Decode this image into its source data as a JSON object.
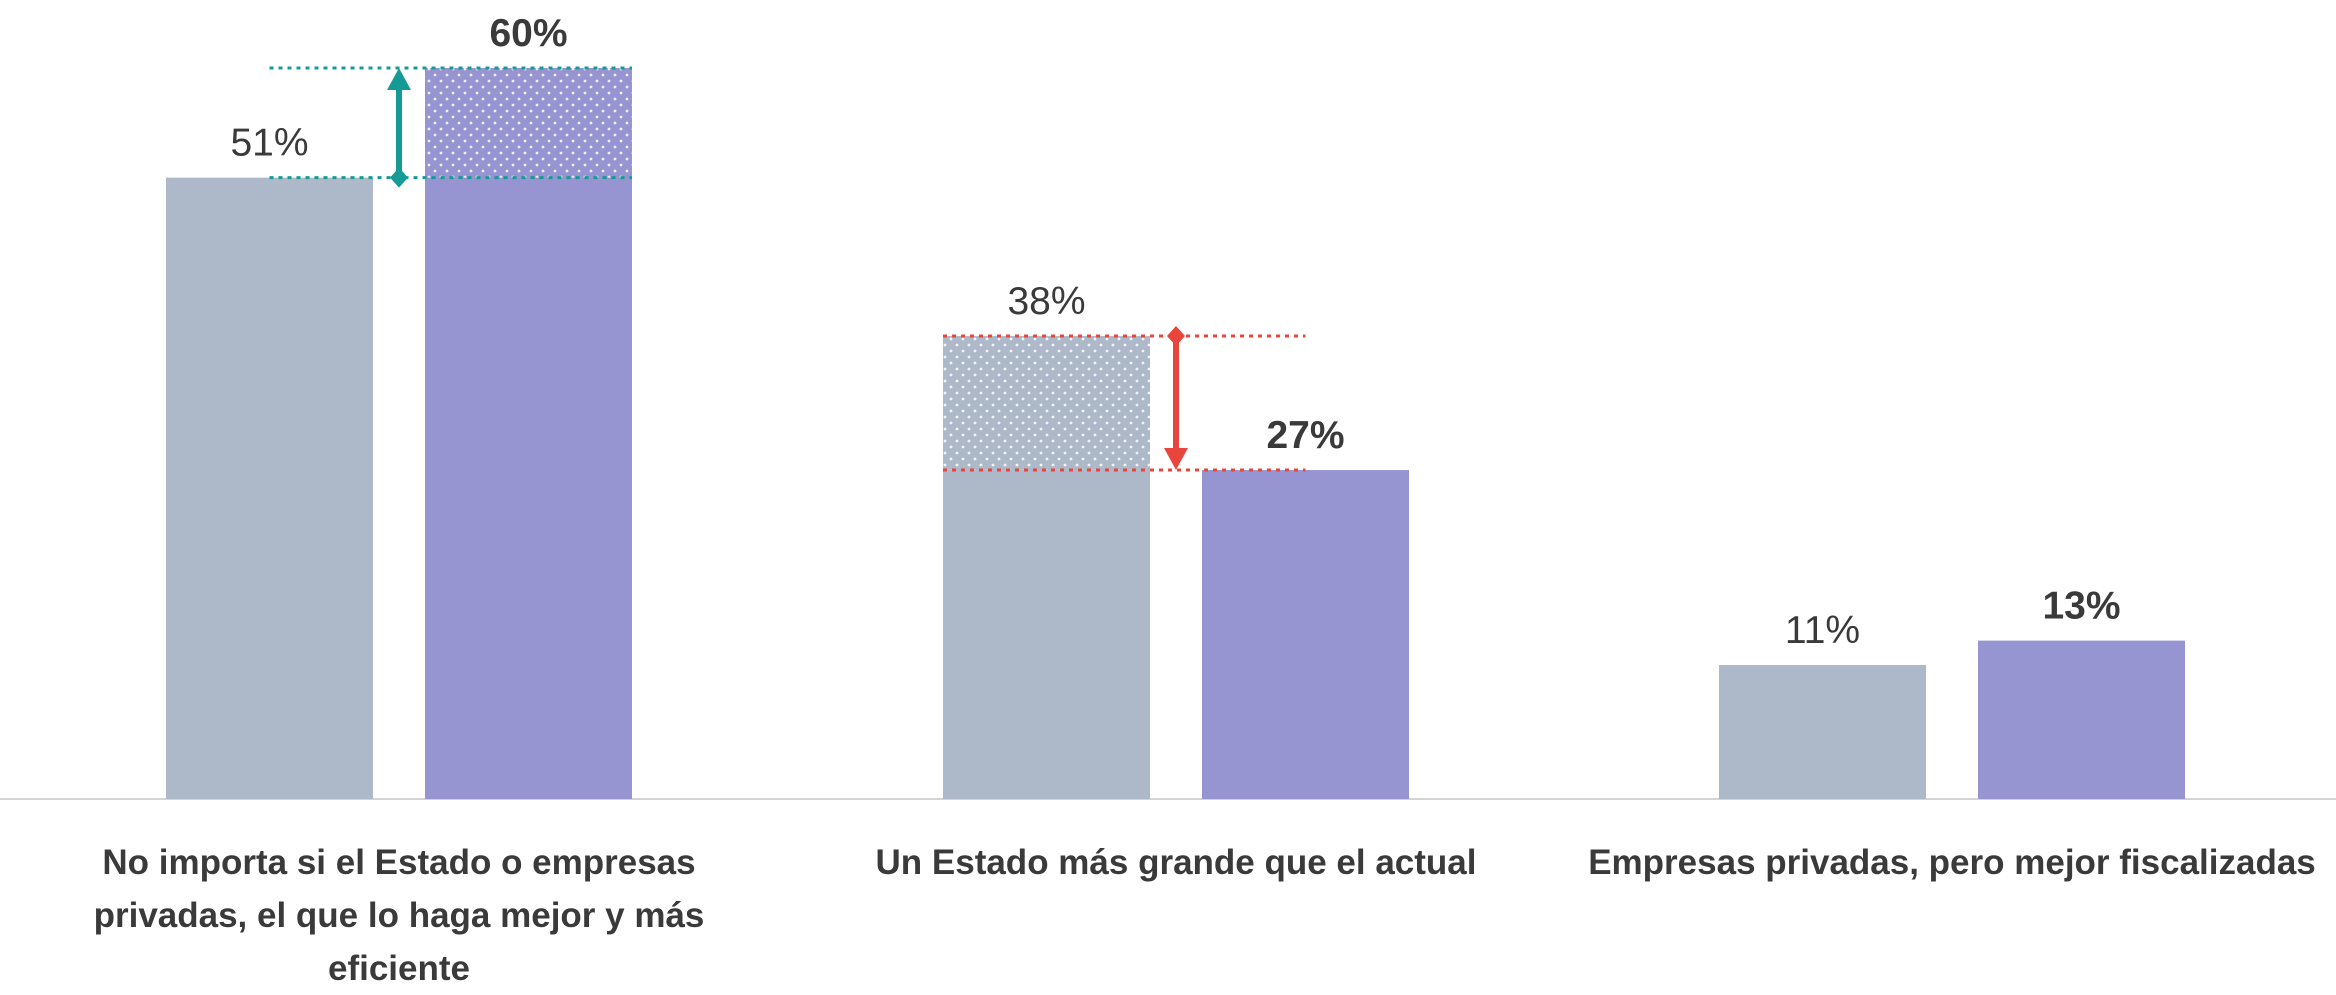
{
  "chart_data": {
    "type": "bar",
    "categories": [
      "No importa si el Estado o empresas privadas, el que lo haga mejor y más eficiente",
      "Un Estado más grande que el actual",
      "Empresas privadas, pero mejor fiscalizadas"
    ],
    "series": [
      {
        "color": "#adb8c9",
        "values": [
          51,
          38,
          11
        ],
        "value_labels": [
          "51%",
          "38%",
          "11%"
        ]
      },
      {
        "color": "#9795d1",
        "values": [
          60,
          27,
          13
        ],
        "value_labels": [
          "60%",
          "27%",
          "13%"
        ]
      }
    ],
    "ylim": [
      0,
      60
    ],
    "change_markers": [
      true,
      true,
      false
    ],
    "change_colors": {
      "up": "#149b96",
      "down": "#e8453c"
    }
  }
}
